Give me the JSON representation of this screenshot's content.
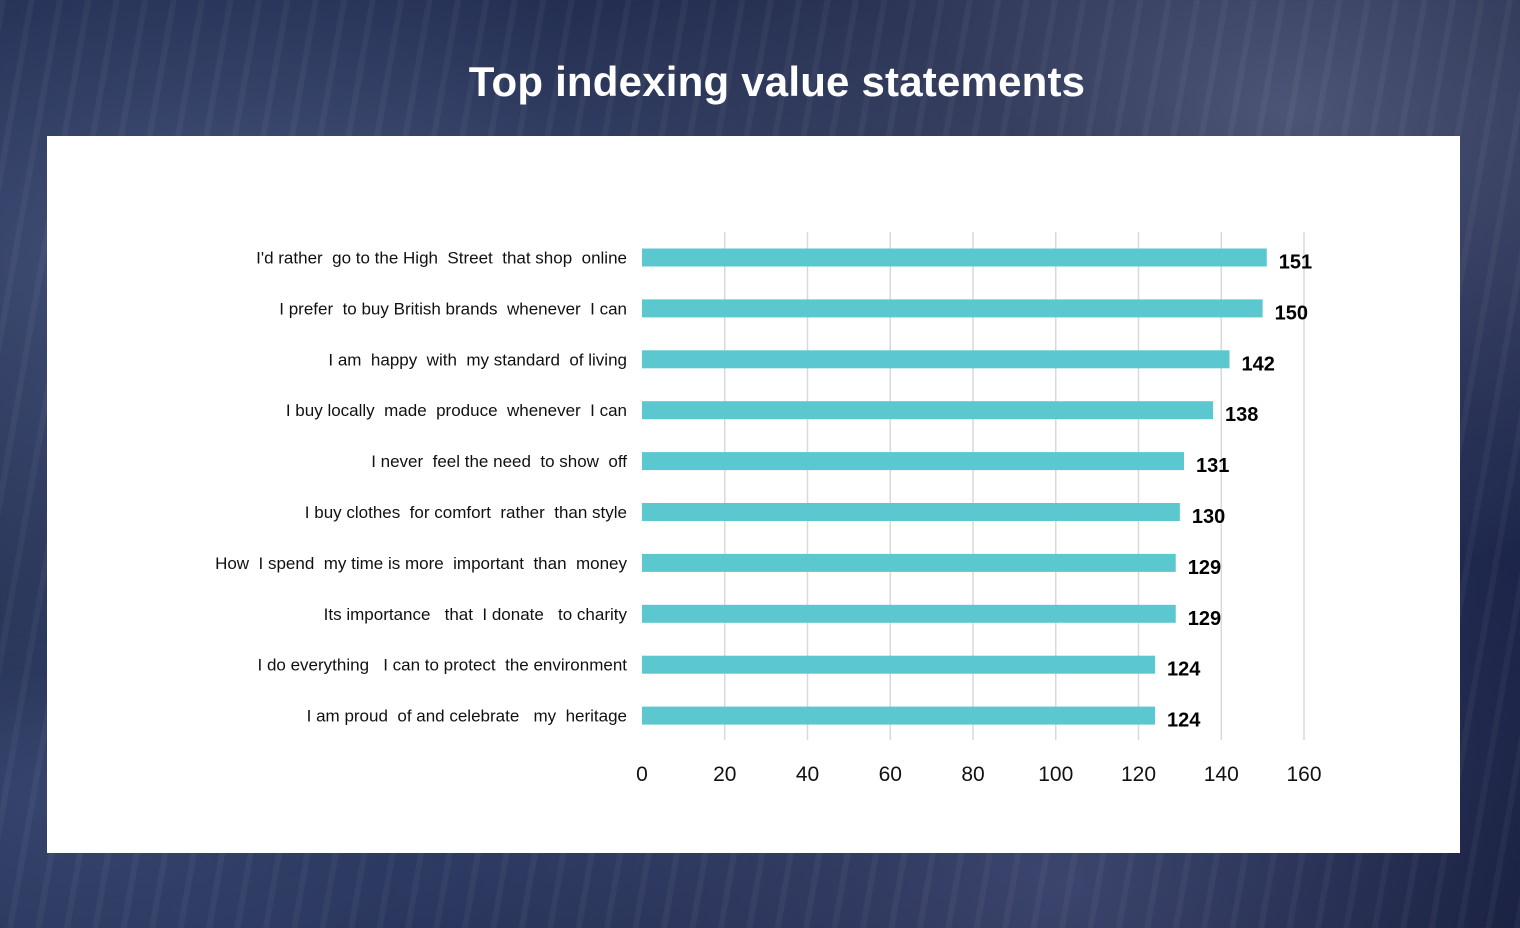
{
  "slide": {
    "title": "Top indexing value statements"
  },
  "chart_data": {
    "type": "bar",
    "orientation": "horizontal",
    "title": "Top indexing value statements",
    "categories": [
      "I'd rather  go to the High  Street  that shop  online",
      "I prefer  to buy British brands  whenever  I can",
      "I am  happy  with  my standard  of living",
      "I buy locally  made  produce  whenever  I can",
      "I never  feel the need  to show  off",
      "I buy clothes  for comfort  rather  than style",
      "How  I spend  my time is more  important  than  money",
      "Its importance   that  I donate   to charity",
      "I do everything   I can to protect  the environment",
      "I am proud  of and celebrate   my  heritage"
    ],
    "values": [
      151,
      150,
      142,
      138,
      131,
      130,
      129,
      129,
      124,
      124
    ],
    "xlim": [
      0,
      160
    ],
    "ticks": [
      0,
      20,
      40,
      60,
      80,
      100,
      120,
      140,
      160
    ],
    "xlabel": "",
    "ylabel": "",
    "grid": "vertical",
    "bar_color": "#5bc8cf"
  }
}
